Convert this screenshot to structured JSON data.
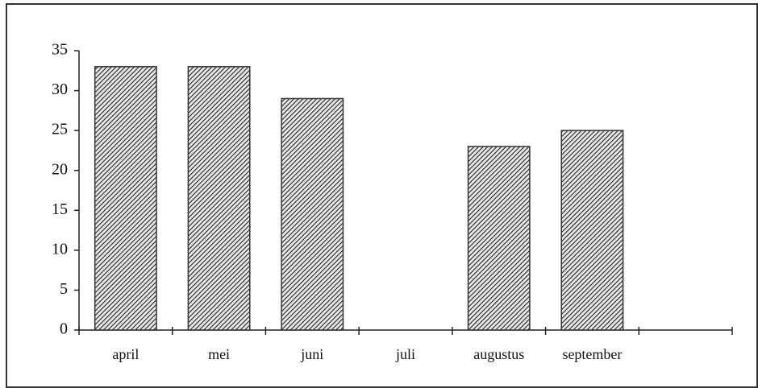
{
  "chart_data": {
    "type": "bar",
    "categories": [
      "april",
      "mei",
      "juni",
      "juli",
      "augustus",
      "september",
      null
    ],
    "values": [
      33,
      33,
      29,
      null,
      23,
      25,
      null
    ],
    "color": "#333333",
    "ylim": [
      0,
      35
    ],
    "yticks": [
      0,
      5,
      10,
      15,
      20,
      25,
      30,
      35
    ],
    "grid": false
  }
}
